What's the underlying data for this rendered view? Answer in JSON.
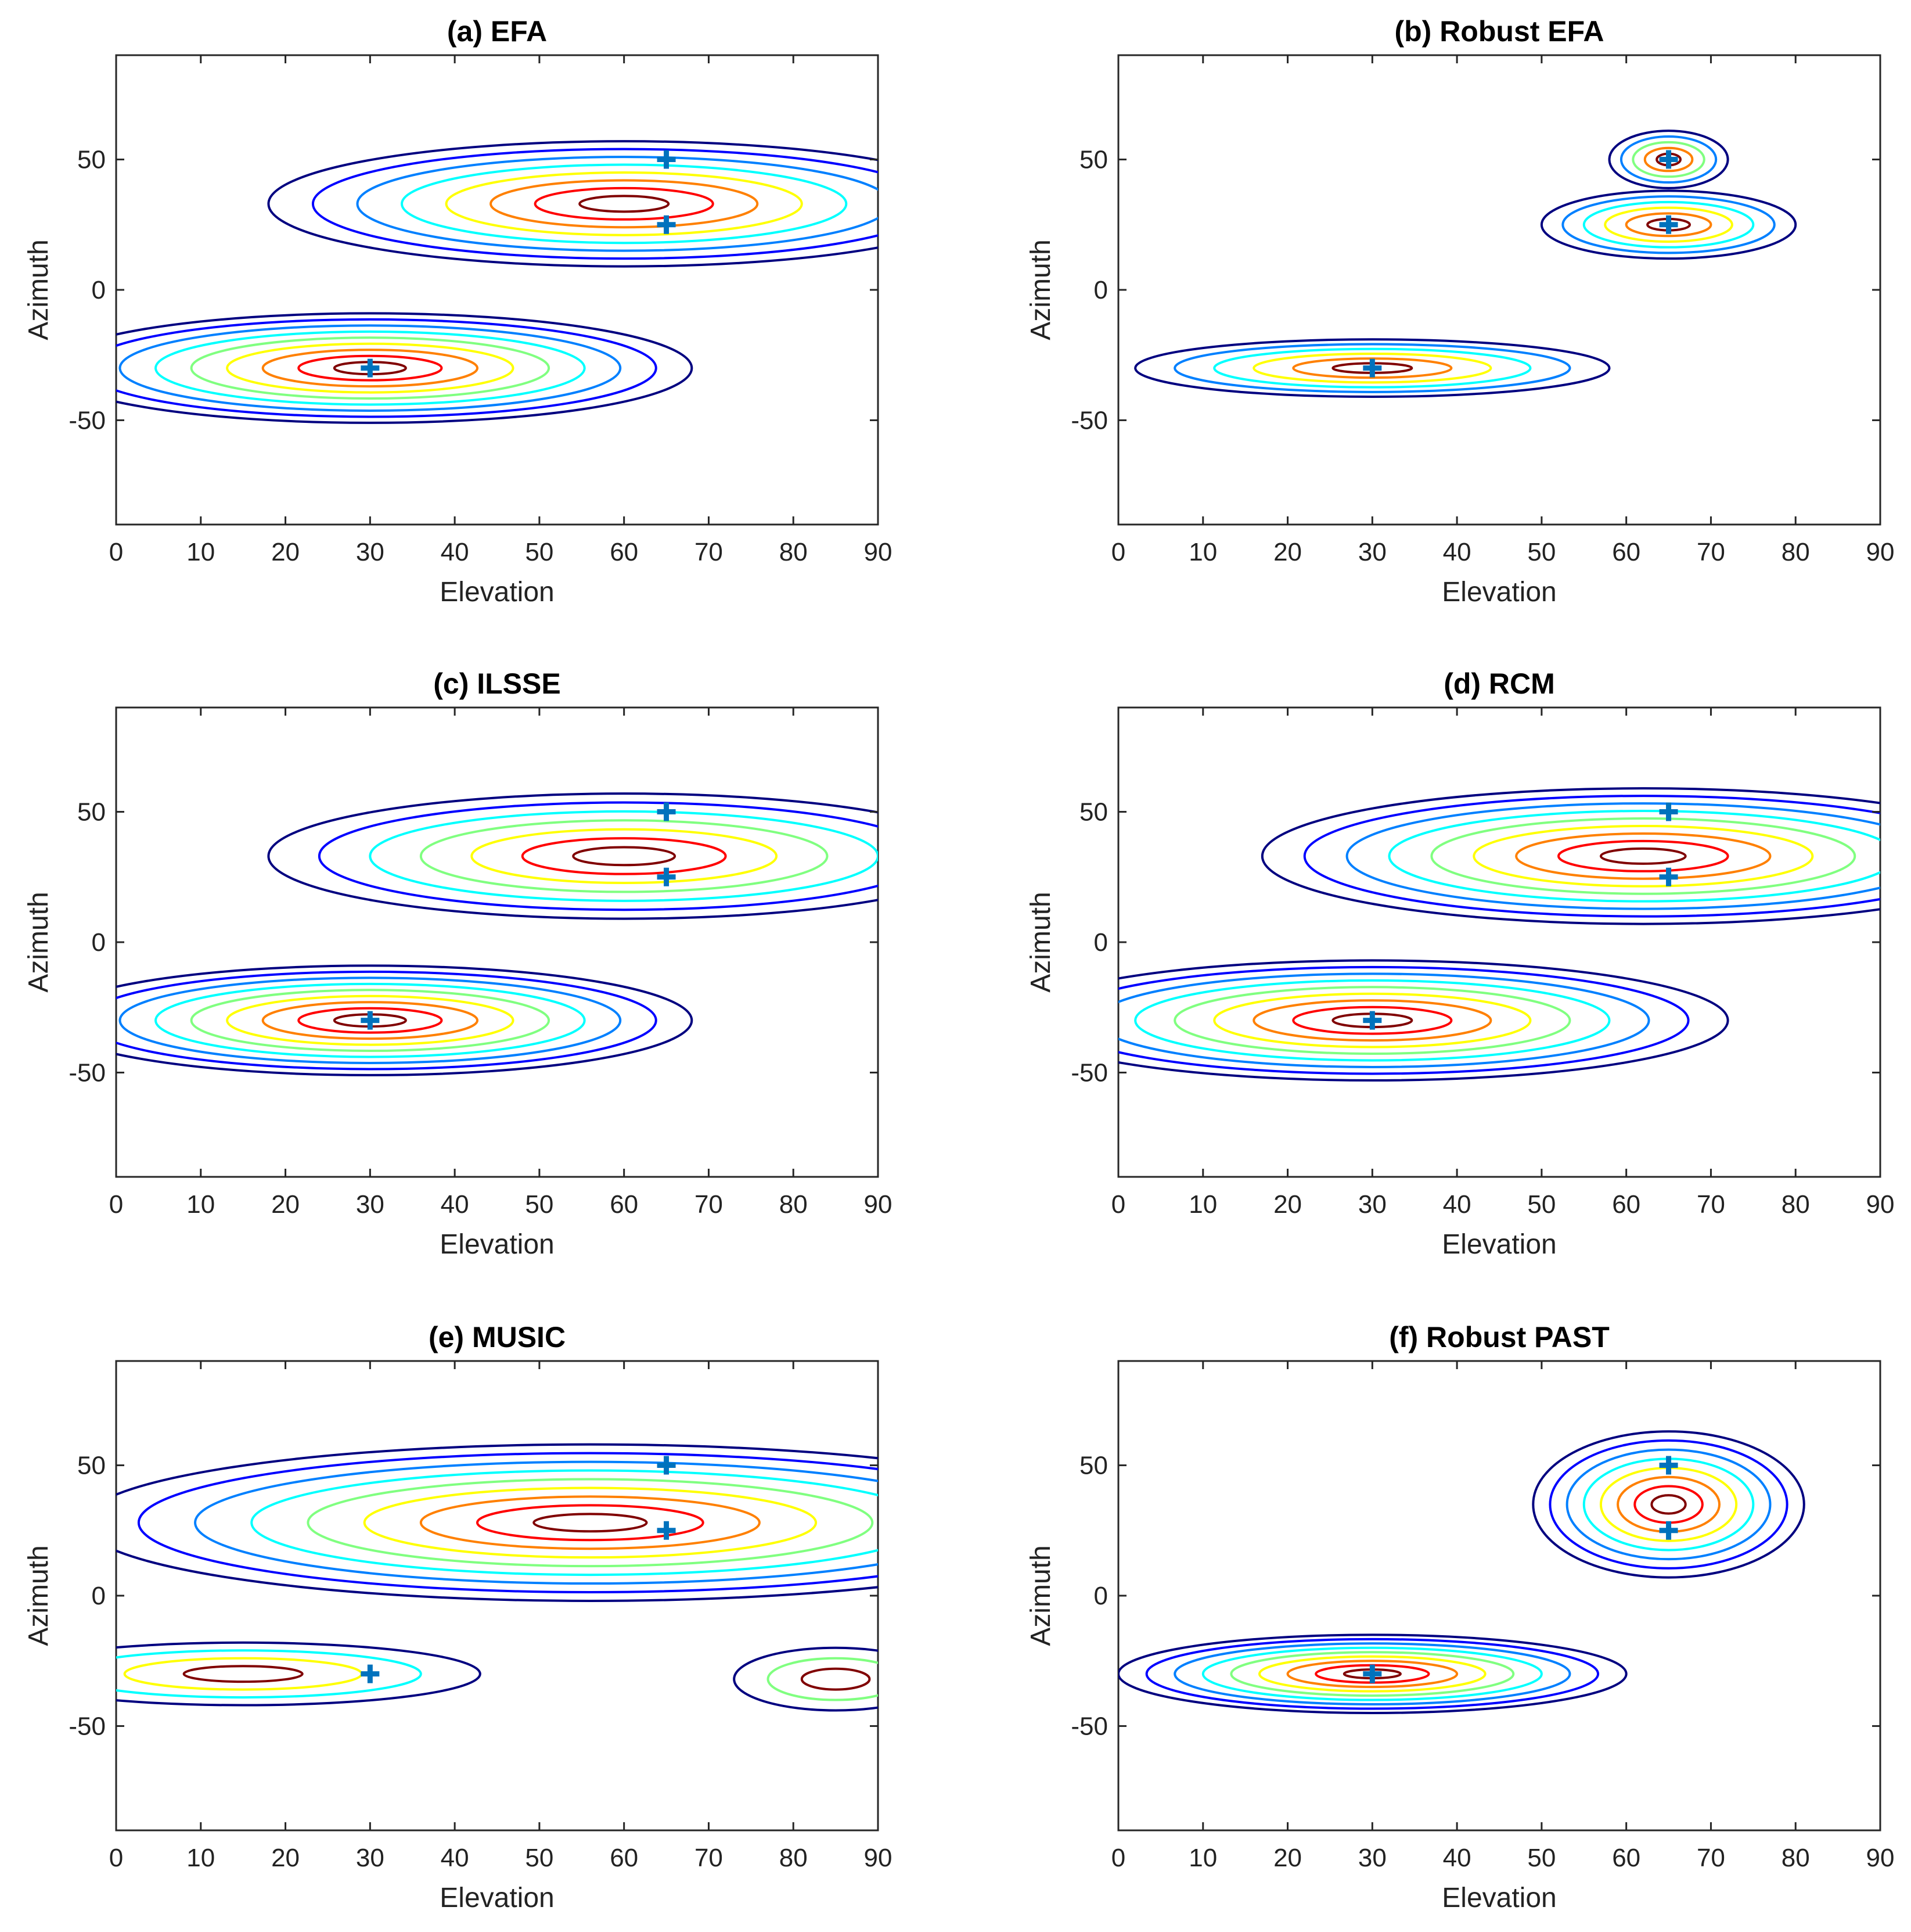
{
  "figure": {
    "contour_colors": [
      "#000080",
      "#0000ff",
      "#0080ff",
      "#00ffff",
      "#80ff80",
      "#ffff00",
      "#ff8000",
      "#ff0000",
      "#800000"
    ],
    "marker_color": "#0072BD"
  },
  "chart_data": [
    {
      "id": "a",
      "type": "contour",
      "title": "(a) EFA",
      "xlabel": "Elevation",
      "ylabel": "Azimuth",
      "xlim": [
        0,
        90
      ],
      "ylim": [
        -90,
        90
      ],
      "xticks": [
        "0",
        "10",
        "20",
        "30",
        "40",
        "50",
        "60",
        "70",
        "80",
        "90"
      ],
      "yticks": [
        "-50",
        "0",
        "50"
      ],
      "ytick_values": [
        -50,
        0,
        50
      ],
      "markers": [
        {
          "x": 65,
          "y": 50
        },
        {
          "x": 65,
          "y": 25
        },
        {
          "x": 30,
          "y": -30
        }
      ],
      "peaks": [
        {
          "x": 30,
          "y": -30,
          "rx": 38,
          "ry": 21,
          "levels": 9
        },
        {
          "x": 60,
          "y": 33,
          "rx": 42,
          "ry": 24,
          "levels": 8
        }
      ]
    },
    {
      "id": "b",
      "type": "contour",
      "title": "(b) Robust EFA",
      "xlabel": "Elevation",
      "ylabel": "Azimuth",
      "xlim": [
        0,
        90
      ],
      "ylim": [
        -90,
        90
      ],
      "xticks": [
        "0",
        "10",
        "20",
        "30",
        "40",
        "50",
        "60",
        "70",
        "80",
        "90"
      ],
      "yticks": [
        "-50",
        "0",
        "50"
      ],
      "ytick_values": [
        -50,
        0,
        50
      ],
      "markers": [
        {
          "x": 65,
          "y": 50
        },
        {
          "x": 65,
          "y": 25
        },
        {
          "x": 30,
          "y": -30
        }
      ],
      "peaks": [
        {
          "x": 30,
          "y": -30,
          "rx": 28,
          "ry": 11,
          "levels": 6
        },
        {
          "x": 65,
          "y": 25,
          "rx": 15,
          "ry": 13,
          "levels": 6
        },
        {
          "x": 65,
          "y": 50,
          "rx": 7,
          "ry": 11,
          "levels": 5
        }
      ]
    },
    {
      "id": "c",
      "type": "contour",
      "title": "(c) ILSSE",
      "xlabel": "Elevation",
      "ylabel": "Azimuth",
      "xlim": [
        0,
        90
      ],
      "ylim": [
        -90,
        90
      ],
      "xticks": [
        "0",
        "10",
        "20",
        "30",
        "40",
        "50",
        "60",
        "70",
        "80",
        "90"
      ],
      "yticks": [
        "-50",
        "0",
        "50"
      ],
      "ytick_values": [
        -50,
        0,
        50
      ],
      "markers": [
        {
          "x": 65,
          "y": 50
        },
        {
          "x": 65,
          "y": 25
        },
        {
          "x": 30,
          "y": -30
        }
      ],
      "peaks": [
        {
          "x": 30,
          "y": -30,
          "rx": 38,
          "ry": 21,
          "levels": 9
        },
        {
          "x": 60,
          "y": 33,
          "rx": 42,
          "ry": 24,
          "levels": 7
        }
      ]
    },
    {
      "id": "d",
      "type": "contour",
      "title": "(d) RCM",
      "xlabel": "Elevation",
      "ylabel": "Azimuth",
      "xlim": [
        0,
        90
      ],
      "ylim": [
        -90,
        90
      ],
      "xticks": [
        "0",
        "10",
        "20",
        "30",
        "40",
        "50",
        "60",
        "70",
        "80",
        "90"
      ],
      "yticks": [
        "-50",
        "0",
        "50"
      ],
      "ytick_values": [
        -50,
        0,
        50
      ],
      "markers": [
        {
          "x": 65,
          "y": 50
        },
        {
          "x": 65,
          "y": 25
        },
        {
          "x": 30,
          "y": -30
        }
      ],
      "peaks": [
        {
          "x": 30,
          "y": -30,
          "rx": 42,
          "ry": 23,
          "levels": 9
        },
        {
          "x": 62,
          "y": 33,
          "rx": 45,
          "ry": 26,
          "levels": 9
        }
      ]
    },
    {
      "id": "e",
      "type": "contour",
      "title": "(e) MUSIC",
      "xlabel": "Elevation",
      "ylabel": "Azimuth",
      "xlim": [
        0,
        90
      ],
      "ylim": [
        -90,
        90
      ],
      "xticks": [
        "0",
        "10",
        "20",
        "30",
        "40",
        "50",
        "60",
        "70",
        "80",
        "90"
      ],
      "yticks": [
        "-50",
        "0",
        "50"
      ],
      "ytick_values": [
        -50,
        0,
        50
      ],
      "markers": [
        {
          "x": 65,
          "y": 50
        },
        {
          "x": 65,
          "y": 25
        },
        {
          "x": 30,
          "y": -30
        }
      ],
      "peaks": [
        {
          "x": 56,
          "y": 28,
          "rx": 60,
          "ry": 30,
          "levels": 9
        },
        {
          "x": 15,
          "y": -30,
          "rx": 28,
          "ry": 12,
          "levels": 4
        },
        {
          "x": 85,
          "y": -32,
          "rx": 12,
          "ry": 12,
          "levels": 3
        }
      ]
    },
    {
      "id": "f",
      "type": "contour",
      "title": "(f) Robust PAST",
      "xlabel": "Elevation",
      "ylabel": "Azimuth",
      "xlim": [
        0,
        90
      ],
      "ylim": [
        -90,
        90
      ],
      "xticks": [
        "0",
        "10",
        "20",
        "30",
        "40",
        "50",
        "60",
        "70",
        "80",
        "90"
      ],
      "yticks": [
        "-50",
        "0",
        "50"
      ],
      "ytick_values": [
        -50,
        0,
        50
      ],
      "markers": [
        {
          "x": 65,
          "y": 50
        },
        {
          "x": 65,
          "y": 25
        },
        {
          "x": 30,
          "y": -30
        }
      ],
      "peaks": [
        {
          "x": 30,
          "y": -30,
          "rx": 30,
          "ry": 15,
          "levels": 9
        },
        {
          "x": 65,
          "y": 35,
          "rx": 16,
          "ry": 28,
          "levels": 8
        }
      ]
    }
  ]
}
